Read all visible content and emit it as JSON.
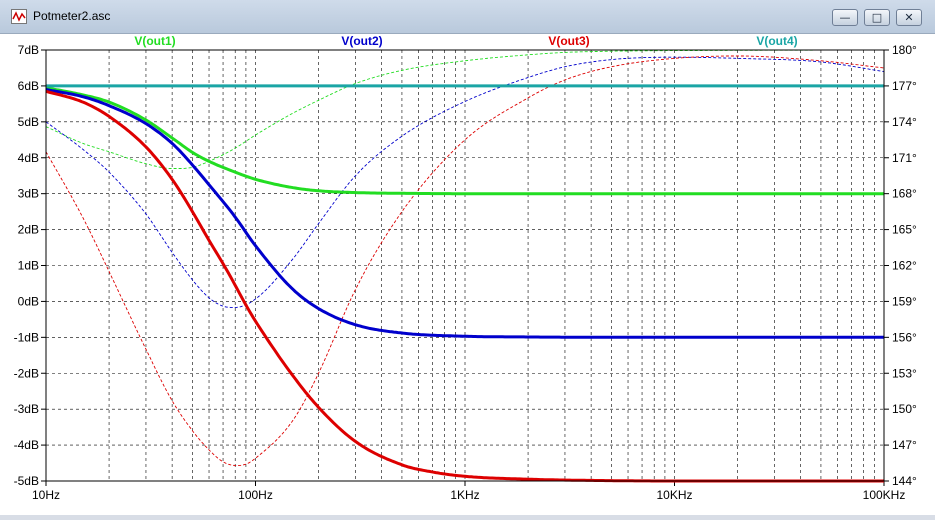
{
  "window": {
    "title": "Potmeter2.asc",
    "minimize_label": "—",
    "restore_label": "□",
    "close_label": "✕"
  },
  "chart_data": {
    "type": "line",
    "title": "",
    "x_scale": "log",
    "xlim": [
      10,
      100000
    ],
    "ylim_db": [
      -5,
      7
    ],
    "ylim_phase_deg": [
      144,
      180
    ],
    "x_major_ticks": [
      10,
      100,
      1000,
      10000,
      100000
    ],
    "x_tick_labels": [
      "10Hz",
      "100Hz",
      "1KHz",
      "10KHz",
      "100KHz"
    ],
    "y_ticks": [
      -5,
      -4,
      -3,
      -2,
      -1,
      0,
      1,
      2,
      3,
      4,
      5,
      6,
      7
    ],
    "y_tick_labels": [
      "-5dB",
      "-4dB",
      "-3dB",
      "-2dB",
      "-1dB",
      "0dB",
      "1dB",
      "2dB",
      "3dB",
      "4dB",
      "5dB",
      "6dB",
      "7dB"
    ],
    "phase_ticks": [
      144,
      147,
      150,
      153,
      156,
      159,
      162,
      165,
      168,
      171,
      174,
      177,
      180
    ],
    "phase_tick_labels": [
      "144°",
      "147°",
      "150°",
      "153°",
      "156°",
      "159°",
      "162°",
      "165°",
      "168°",
      "171°",
      "174°",
      "177°",
      "180°"
    ],
    "grid": true,
    "legend_position": "top",
    "series": [
      {
        "name": "V(out1)",
        "color": "#22dd22",
        "magnitude": {
          "x": [
            10,
            15,
            20,
            30,
            40,
            50,
            60,
            80,
            100,
            150,
            200,
            300,
            500,
            1000,
            10000,
            100000
          ],
          "y": [
            5.95,
            5.75,
            5.55,
            5.05,
            4.55,
            4.15,
            3.9,
            3.6,
            3.4,
            3.17,
            3.08,
            3.03,
            3.01,
            3.0,
            3.0,
            3.0
          ]
        },
        "phase": {
          "x": [
            10,
            15,
            20,
            30,
            40,
            50,
            60,
            80,
            100,
            150,
            200,
            300,
            500,
            1000,
            2000,
            3000,
            5000,
            10000,
            100000
          ],
          "y": [
            173.6,
            172.2,
            171.5,
            170.5,
            170.1,
            170.2,
            170.7,
            171.8,
            172.9,
            174.7,
            175.8,
            177.2,
            178.3,
            179.1,
            179.6,
            179.8,
            179.9,
            179.95,
            180.0
          ]
        }
      },
      {
        "name": "V(out2)",
        "color": "#0000cc",
        "magnitude": {
          "x": [
            10,
            15,
            20,
            30,
            40,
            50,
            60,
            80,
            100,
            150,
            200,
            300,
            500,
            1000,
            2000,
            10000,
            100000
          ],
          "y": [
            5.9,
            5.7,
            5.45,
            4.95,
            4.4,
            3.8,
            3.25,
            2.35,
            1.55,
            0.35,
            -0.2,
            -0.65,
            -0.88,
            -0.97,
            -0.99,
            -1.0,
            -1.0
          ]
        },
        "phase": {
          "x": [
            10,
            15,
            20,
            30,
            40,
            50,
            60,
            70,
            80,
            100,
            150,
            200,
            300,
            500,
            1000,
            2000,
            3000,
            5000,
            10000,
            20000,
            50000,
            100000
          ],
          "y": [
            174.0,
            171.7,
            169.8,
            166.3,
            163.1,
            160.8,
            159.3,
            158.6,
            158.5,
            159.2,
            162.5,
            165.5,
            169.5,
            172.8,
            175.7,
            177.7,
            178.6,
            179.2,
            179.4,
            179.3,
            179.0,
            178.2
          ]
        }
      },
      {
        "name": "V(out3)",
        "color": "#dd0000",
        "magnitude": {
          "x": [
            10,
            15,
            20,
            30,
            40,
            50,
            60,
            70,
            80,
            90,
            100,
            150,
            200,
            300,
            500,
            700,
            1000,
            2000,
            5000,
            10000,
            100000
          ],
          "y": [
            5.85,
            5.55,
            5.15,
            4.3,
            3.4,
            2.5,
            1.7,
            1.05,
            0.45,
            -0.1,
            -0.55,
            -2.05,
            -2.95,
            -3.9,
            -4.55,
            -4.75,
            -4.87,
            -4.95,
            -4.99,
            -5.0,
            -5.0
          ]
        },
        "phase": {
          "x": [
            10,
            15,
            20,
            30,
            40,
            50,
            60,
            70,
            80,
            90,
            100,
            150,
            200,
            300,
            500,
            1000,
            2000,
            3000,
            5000,
            10000,
            20000,
            50000,
            100000
          ],
          "y": [
            171.5,
            166.0,
            161.5,
            155.0,
            150.7,
            148.2,
            146.6,
            145.6,
            145.3,
            145.4,
            145.9,
            149.0,
            153.0,
            160.0,
            166.5,
            172.5,
            176.0,
            177.5,
            178.6,
            179.3,
            179.5,
            179.1,
            178.5
          ]
        }
      },
      {
        "name": "V(out4)",
        "color": "#1aa5a5",
        "magnitude": {
          "x": [
            10,
            100000
          ],
          "y": [
            6.0,
            6.0
          ]
        },
        "phase": {
          "x": [
            10,
            100000
          ],
          "y": [
            180.0,
            180.0
          ]
        }
      }
    ]
  }
}
